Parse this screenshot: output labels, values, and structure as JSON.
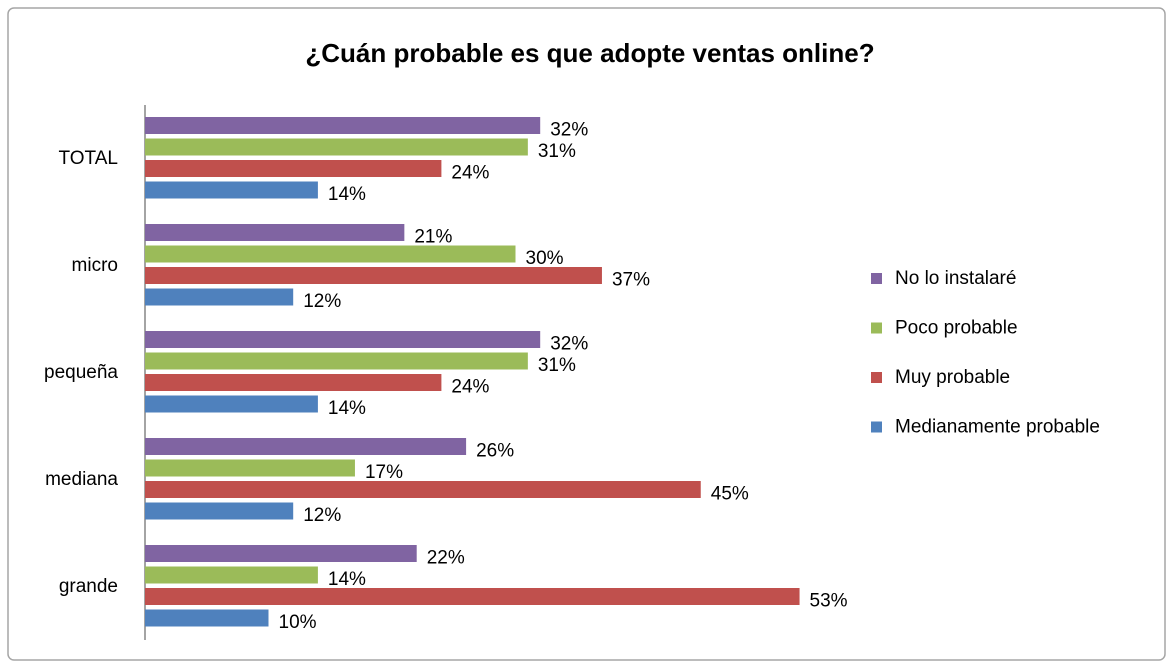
{
  "chart_data": {
    "type": "hbar",
    "title": "¿Cuán probable es que adopte ventas online?",
    "categories": [
      "TOTAL",
      "micro",
      "pequeña",
      "mediana",
      "grande"
    ],
    "series": [
      {
        "name": "No lo instalaré",
        "color": "#8064a2",
        "values": [
          32,
          21,
          32,
          26,
          22
        ],
        "value_labels": [
          "32%",
          "21%",
          "32%",
          "26%",
          "22%"
        ]
      },
      {
        "name": "Poco probable",
        "color": "#9bbb59",
        "values": [
          31,
          30,
          31,
          17,
          14
        ],
        "value_labels": [
          "31%",
          "30%",
          "31%",
          "17%",
          "14%"
        ]
      },
      {
        "name": "Muy probable",
        "color": "#c0504d",
        "values": [
          24,
          37,
          24,
          45,
          53
        ],
        "value_labels": [
          "24%",
          "37%",
          "24%",
          "45%",
          "53%"
        ]
      },
      {
        "name": "Medianamente probable",
        "color": "#4f81bd",
        "values": [
          14,
          12,
          14,
          12,
          10
        ],
        "value_labels": [
          "14%",
          "12%",
          "14%",
          "12%",
          "10%"
        ]
      }
    ],
    "legend": "right"
  }
}
